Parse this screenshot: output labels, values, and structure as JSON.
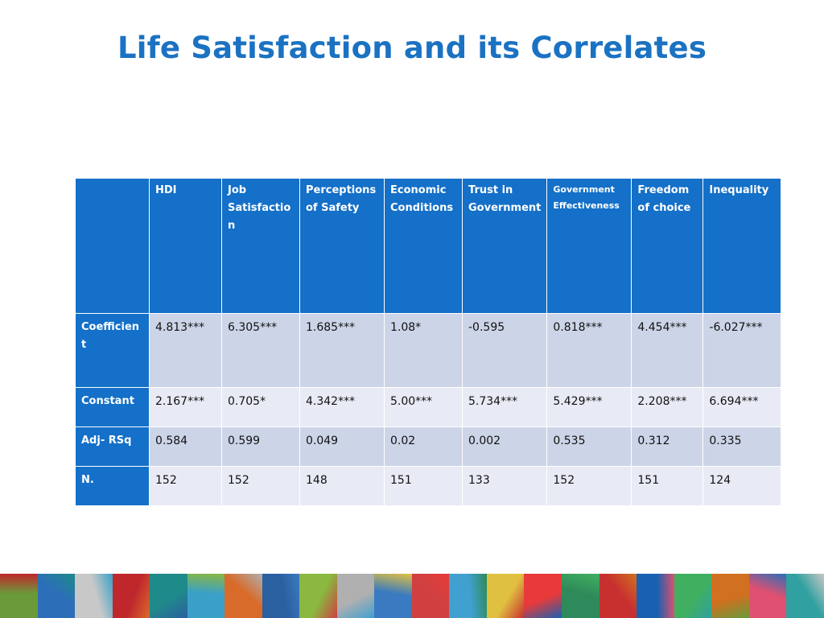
{
  "title": "Life Satisfaction and its Correlates",
  "table": {
    "columns": [
      "HDI",
      "Job Satisfaction",
      "Perceptions of Safety",
      "Economic Conditions",
      "Trust in Government",
      "Government Effectiveness",
      "Freedom of choice",
      "Inequality"
    ],
    "rows": [
      {
        "label": "Coefficient",
        "values": [
          "4.813***",
          "6.305***",
          "1.685***",
          "1.08*",
          "-0.595",
          "0.818***",
          "4.454***",
          "-6.027***"
        ]
      },
      {
        "label": "Constant",
        "values": [
          "2.167***",
          "0.705*",
          "4.342***",
          "5.00***",
          "5.734***",
          "5.429***",
          "2.208***",
          "6.694***"
        ]
      },
      {
        "label": "Adj- RSq",
        "values": [
          "0.584",
          "0.599",
          "0.049",
          "0.02",
          "0.002",
          "0.535",
          "0.312",
          "0.335"
        ]
      },
      {
        "label": "N.",
        "values": [
          "152",
          "152",
          "148",
          "151",
          "133",
          "152",
          "151",
          "124"
        ]
      }
    ]
  },
  "colors": {
    "title": "#1b72c2",
    "header_fill": "#1470c8",
    "row_fill_dark": "#ccd4e8",
    "row_fill_light": "#e8ebf5"
  },
  "decorative_strip": {
    "tiles": [
      "#6a9a3a",
      "#2c6fb8",
      "#c8c8c8",
      "#c0272d",
      "#1f8a8a",
      "#3aa0c8",
      "#d86a2a",
      "#2a5fa0",
      "#8ab840",
      "#b0b0b0",
      "#3a7ac0",
      "#d04040",
      "#40a0d0",
      "#e0c040",
      "#e83a3a",
      "#2e8a5a",
      "#c83030",
      "#1a60b0",
      "#40b060",
      "#d07020",
      "#e05070",
      "#30a0a0"
    ]
  }
}
